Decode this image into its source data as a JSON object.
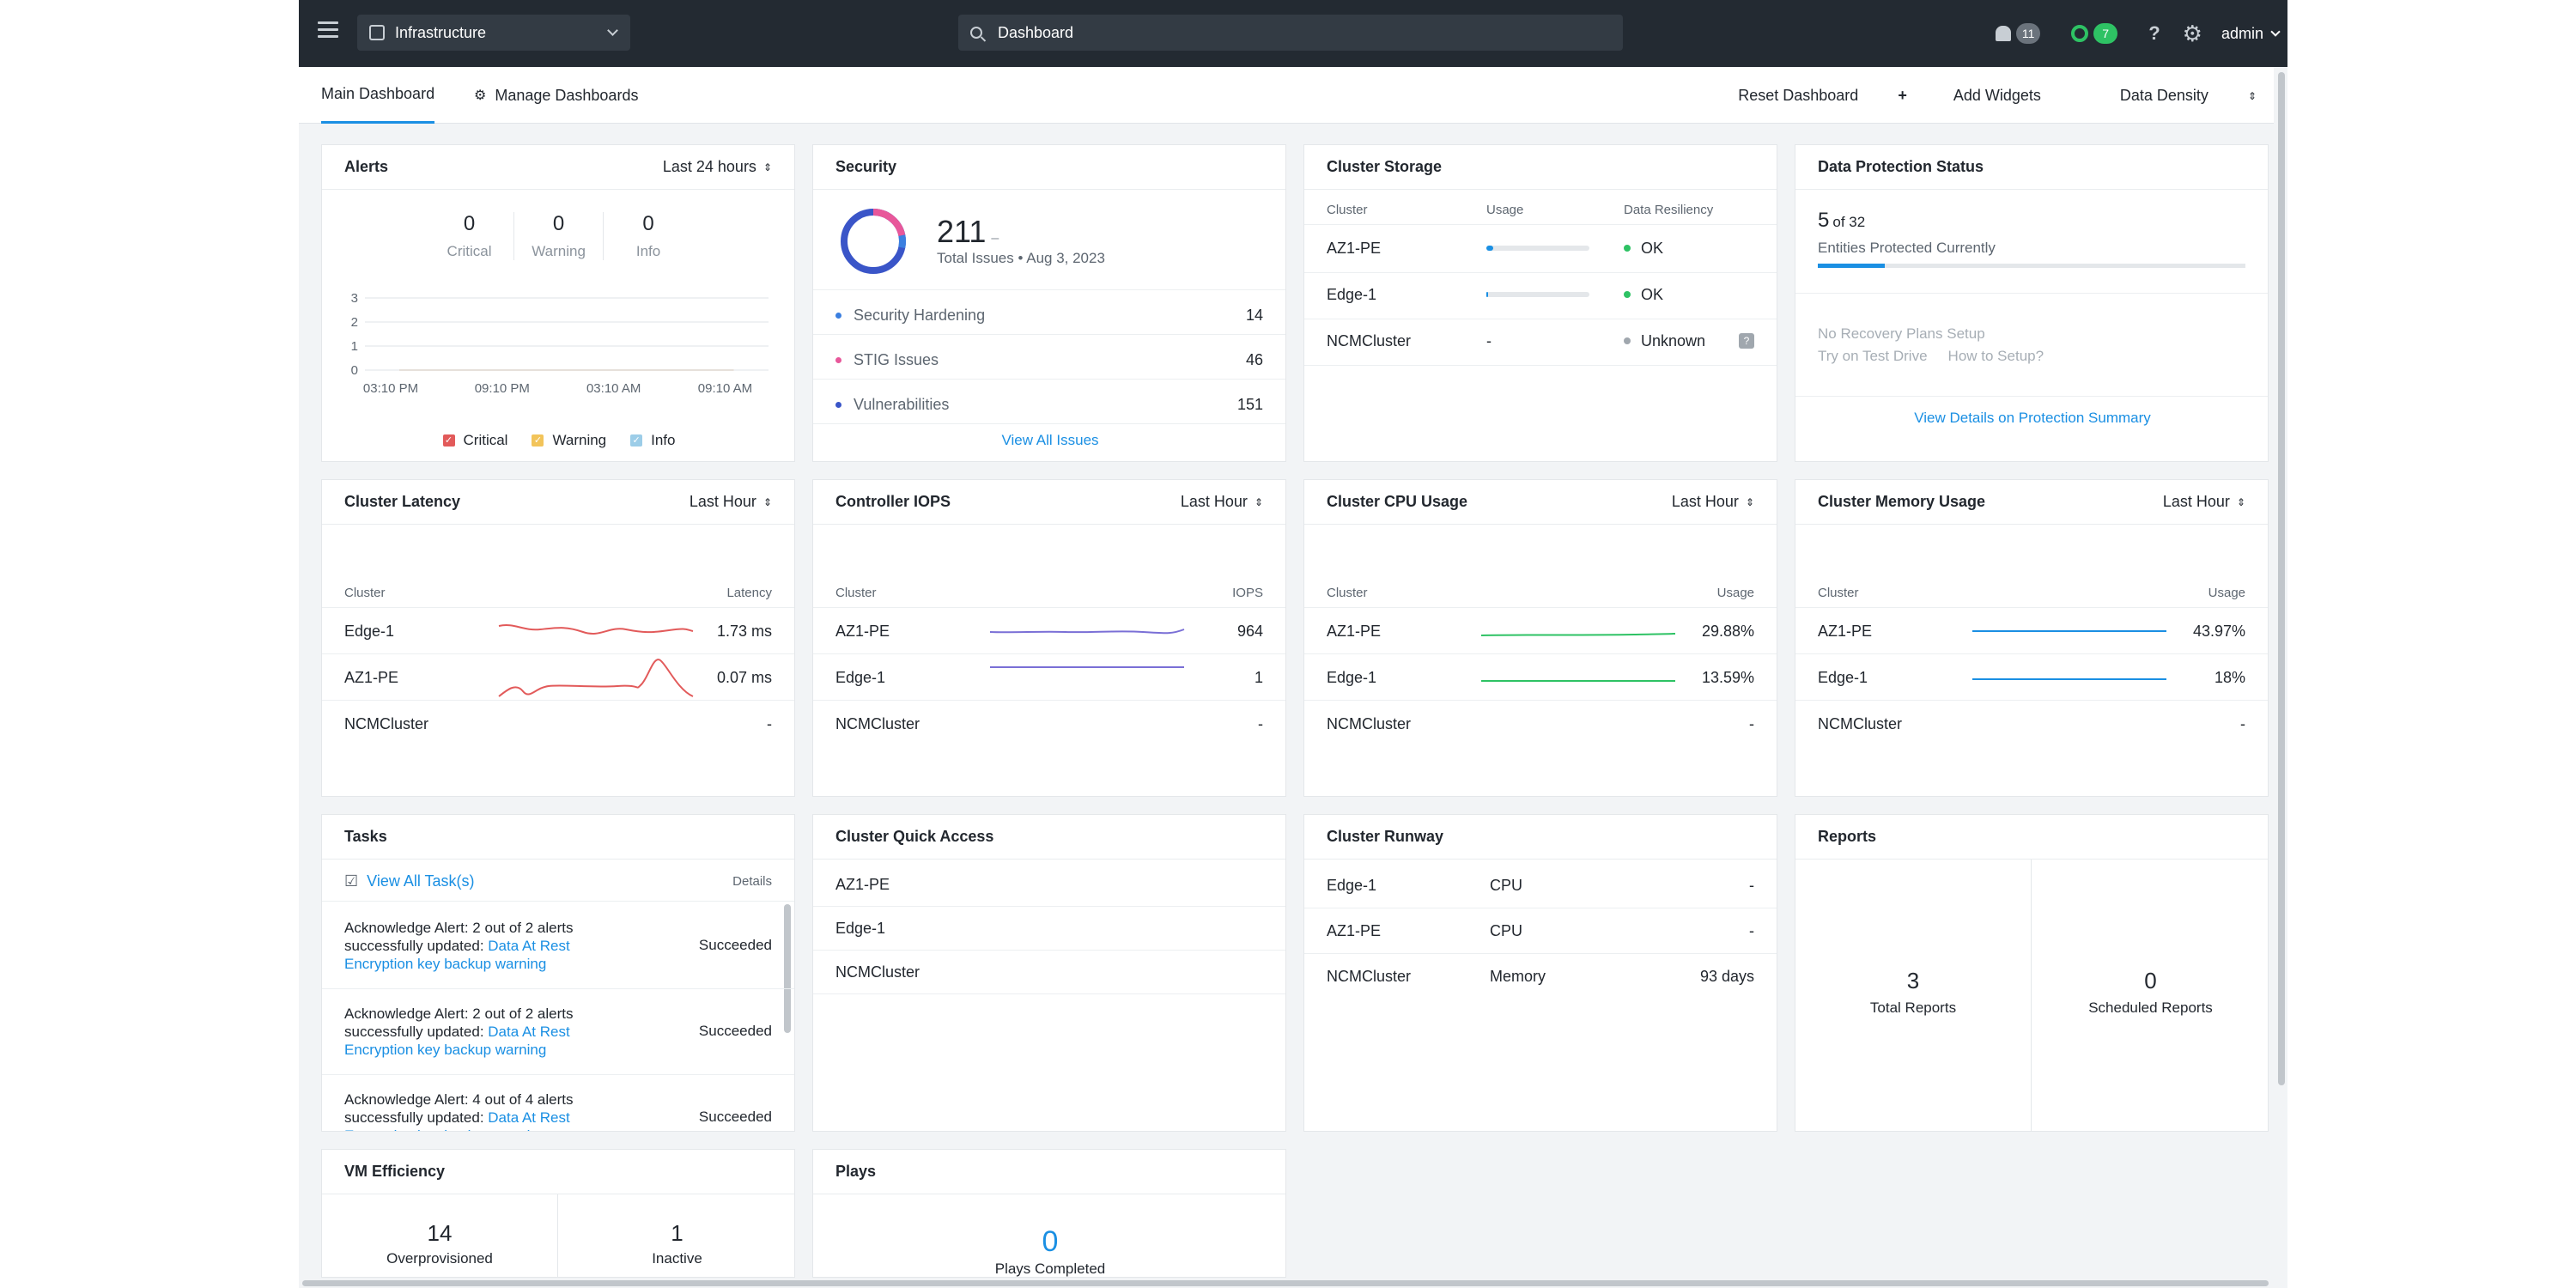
{
  "topbar": {
    "app_name": "Infrastructure",
    "search_value": "Dashboard",
    "alerts_count": "11",
    "tasks_count": "7",
    "user": "admin"
  },
  "subnav": {
    "tabs": [
      {
        "label": "Main Dashboard"
      },
      {
        "label": "Manage Dashboards"
      }
    ],
    "reset": "Reset Dashboard",
    "add": "Add Widgets",
    "density": "Data Density"
  },
  "alerts": {
    "title": "Alerts",
    "range": "Last 24 hours",
    "counts": [
      {
        "value": "0",
        "label": "Critical"
      },
      {
        "value": "0",
        "label": "Warning"
      },
      {
        "value": "0",
        "label": "Info"
      }
    ],
    "chart_data": {
      "type": "line",
      "x": [
        "03:10 PM",
        "09:10 PM",
        "03:10 AM",
        "09:10 AM"
      ],
      "yticks": [
        "3",
        "2",
        "1",
        "0"
      ],
      "ylim": [
        0,
        3
      ],
      "series": [
        {
          "name": "Critical",
          "color": "#e25a5a",
          "values": [
            0,
            0,
            0,
            0
          ]
        },
        {
          "name": "Warning",
          "color": "#f2c45a",
          "values": [
            0,
            0,
            0,
            0
          ]
        },
        {
          "name": "Info",
          "color": "#9ccde8",
          "values": [
            0,
            0,
            0,
            0
          ]
        }
      ]
    },
    "legend": [
      "Critical",
      "Warning",
      "Info"
    ]
  },
  "security": {
    "title": "Security",
    "total": "211",
    "dash": "–",
    "subtitle": "Total Issues • Aug 3, 2023",
    "items": [
      {
        "label": "Security Hardening",
        "value": "14",
        "color": "#3b7fe0"
      },
      {
        "label": "STIG Issues",
        "value": "46",
        "color": "#e8579a"
      },
      {
        "label": "Vulnerabilities",
        "value": "151",
        "color": "#3a55c8"
      }
    ],
    "link": "View All Issues"
  },
  "storage": {
    "title": "Cluster Storage",
    "headers": [
      "Cluster",
      "Usage",
      "Data Resiliency"
    ],
    "rows": [
      {
        "name": "AZ1-PE",
        "usage": 0.07,
        "usage_text": "",
        "status": "OK",
        "dot": "#2ec264"
      },
      {
        "name": "Edge-1",
        "usage": 0.01,
        "usage_text": "",
        "status": "OK",
        "dot": "#2ec264"
      },
      {
        "name": "NCMCluster",
        "usage": null,
        "usage_text": "-",
        "status": "Unknown",
        "dot": "#a0a7ae"
      }
    ]
  },
  "protection": {
    "title": "Data Protection Status",
    "count": "5",
    "of": "of 32",
    "subtitle": "Entities Protected Currently",
    "fraction": 0.156,
    "no_plans": "No Recovery Plans Setup",
    "try": "Try on Test Drive",
    "how": "How to Setup?",
    "link": "View Details on Protection Summary"
  },
  "latency": {
    "title": "Cluster Latency",
    "range": "Last Hour",
    "col1": "Cluster",
    "col2": "Latency",
    "rows": [
      {
        "name": "Edge-1",
        "value": "1.73 ms"
      },
      {
        "name": "AZ1-PE",
        "value": "0.07 ms"
      },
      {
        "name": "NCMCluster",
        "value": "-"
      }
    ]
  },
  "iops": {
    "title": "Controller IOPS",
    "range": "Last Hour",
    "col1": "Cluster",
    "col2": "IOPS",
    "rows": [
      {
        "name": "AZ1-PE",
        "value": "964"
      },
      {
        "name": "Edge-1",
        "value": "1"
      },
      {
        "name": "NCMCluster",
        "value": "-"
      }
    ]
  },
  "cpu": {
    "title": "Cluster CPU Usage",
    "range": "Last Hour",
    "col1": "Cluster",
    "col2": "Usage",
    "rows": [
      {
        "name": "AZ1-PE",
        "value": "29.88%"
      },
      {
        "name": "Edge-1",
        "value": "13.59%"
      },
      {
        "name": "NCMCluster",
        "value": "-"
      }
    ]
  },
  "memory": {
    "title": "Cluster Memory Usage",
    "range": "Last Hour",
    "col1": "Cluster",
    "col2": "Usage",
    "rows": [
      {
        "name": "AZ1-PE",
        "value": "43.97%"
      },
      {
        "name": "Edge-1",
        "value": "18%"
      },
      {
        "name": "NCMCluster",
        "value": "-"
      }
    ]
  },
  "tasks": {
    "title": "Tasks",
    "view_all": "View All Task(s)",
    "details": "Details",
    "items": [
      {
        "text": "Acknowledge Alert: 2 out of 2 alerts successfully updated: ",
        "link": "Data At Rest Encryption key backup warning",
        "status": "Succeeded"
      },
      {
        "text": "Acknowledge Alert: 2 out of 2 alerts successfully updated: ",
        "link": "Data At Rest Encryption key backup warning",
        "status": "Succeeded"
      },
      {
        "text": "Acknowledge Alert: 4 out of 4 alerts successfully updated: ",
        "link": "Data At Rest Encryption key backup warning",
        "status": "Succeeded"
      }
    ]
  },
  "quick": {
    "title": "Cluster Quick Access",
    "items": [
      "AZ1-PE",
      "Edge-1",
      "NCMCluster"
    ]
  },
  "runway": {
    "title": "Cluster Runway",
    "rows": [
      {
        "name": "Edge-1",
        "type": "CPU",
        "value": "-"
      },
      {
        "name": "AZ1-PE",
        "type": "CPU",
        "value": "-"
      },
      {
        "name": "NCMCluster",
        "type": "Memory",
        "value": "93 days"
      }
    ]
  },
  "reports": {
    "title": "Reports",
    "total": "3",
    "total_label": "Total Reports",
    "scheduled": "0",
    "scheduled_label": "Scheduled Reports"
  },
  "vm": {
    "title": "VM Efficiency",
    "over": "14",
    "over_label": "Overprovisioned",
    "inactive": "1",
    "inactive_label": "Inactive"
  },
  "plays": {
    "title": "Plays",
    "count": "0",
    "label": "Plays Completed"
  }
}
